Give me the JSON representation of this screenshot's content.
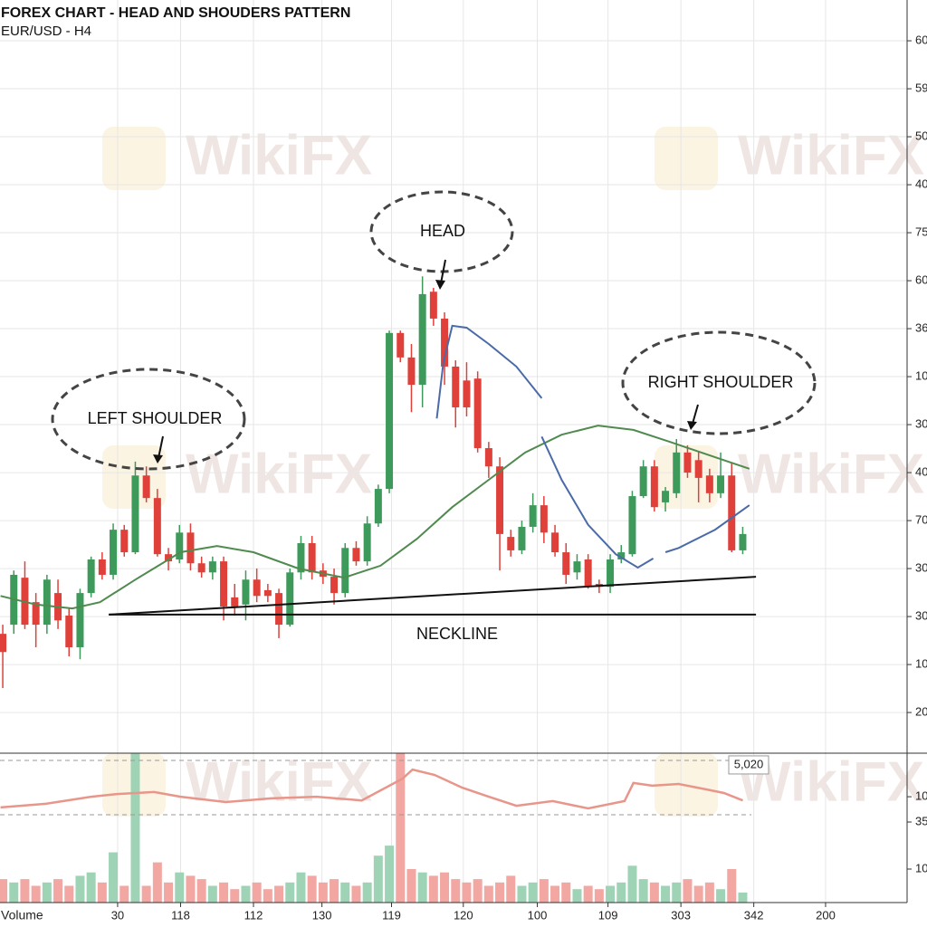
{
  "chart_data": [
    {
      "type": "candlestick",
      "title": "FOREX CHART - HEAD AND SHOUDERS PATTERN",
      "subtitle": "EUR/USD - H4",
      "watermark": "WikiFX",
      "up_color": "#3d9a5b",
      "down_color": "#e0403a",
      "x": [
        0,
        1,
        2,
        3,
        4,
        5,
        6,
        7,
        8,
        9,
        10,
        11,
        12,
        13,
        14,
        15,
        16,
        17,
        18,
        19,
        20,
        21,
        22,
        23,
        24,
        25,
        26,
        27,
        28,
        29,
        30,
        31,
        32,
        33,
        34,
        35,
        36,
        37,
        38,
        39,
        40,
        41,
        42,
        43,
        44,
        45,
        46,
        47,
        48,
        49,
        50,
        51,
        52,
        53,
        54,
        55,
        56,
        57,
        58,
        59,
        60,
        61,
        62,
        63,
        64,
        65,
        66,
        67
      ],
      "open": [
        1.64,
        1.83,
        2.81,
        2.3,
        1.83,
        2.49,
        2.02,
        1.36,
        2.49,
        3.19,
        2.87,
        3.81,
        3.34,
        4.94,
        4.47,
        3.3,
        3.19,
        3.75,
        3.11,
        2.92,
        3.15,
        2.4,
        2.25,
        2.77,
        2.55,
        2.49,
        1.83,
        2.92,
        3.53,
        2.96,
        2.83,
        2.49,
        3.43,
        3.15,
        3.94,
        4.66,
        7.91,
        7.4,
        6.83,
        8.77,
        8.21,
        7.21,
        6.92,
        6.96,
        5.51,
        5.13,
        3.66,
        3.38,
        3.87,
        4.32,
        3.75,
        3.34,
        2.92,
        3.19,
        2.68,
        2.62,
        3.19,
        3.3,
        4.51,
        5.13,
        4.38,
        4.57,
        5.42,
        5.26,
        4.94,
        4.57,
        4.94,
        3.38
      ],
      "close": [
        1.26,
        2.87,
        1.83,
        1.83,
        2.77,
        1.92,
        1.36,
        2.49,
        3.19,
        2.87,
        3.81,
        3.34,
        4.94,
        4.47,
        3.3,
        3.15,
        3.75,
        3.11,
        2.92,
        3.15,
        2.21,
        2.21,
        2.77,
        2.43,
        2.43,
        1.83,
        2.92,
        3.53,
        2.92,
        2.83,
        2.49,
        3.43,
        3.15,
        3.94,
        4.66,
        7.91,
        7.4,
        6.83,
        8.72,
        8.21,
        7.21,
        6.36,
        6.36,
        5.51,
        5.13,
        3.72,
        3.38,
        3.87,
        4.32,
        3.75,
        3.34,
        2.87,
        3.15,
        2.62,
        2.62,
        3.19,
        3.34,
        4.51,
        5.13,
        4.28,
        4.62,
        5.42,
        5.0,
        4.89,
        4.57,
        4.94,
        3.38,
        3.72
      ],
      "high": [
        1.83,
        2.96,
        3.15,
        2.49,
        2.87,
        2.77,
        2.17,
        2.58,
        3.25,
        3.34,
        3.94,
        3.91,
        5.23,
        5.13,
        4.66,
        3.43,
        3.91,
        3.94,
        3.25,
        3.25,
        3.25,
        2.68,
        2.96,
        3.0,
        2.68,
        2.58,
        3.0,
        3.68,
        3.68,
        3.11,
        3.0,
        3.53,
        3.57,
        4.09,
        4.75,
        7.96,
        7.96,
        7.68,
        9.09,
        8.85,
        8.34,
        7.34,
        7.3,
        7.11,
        5.64,
        5.32,
        3.81,
        4.0,
        4.57,
        4.51,
        3.91,
        3.53,
        3.3,
        3.3,
        2.77,
        3.3,
        3.49,
        4.62,
        5.26,
        5.26,
        4.7,
        5.7,
        5.57,
        5.45,
        5.08,
        5.42,
        5.19,
        3.87
      ],
      "low": [
        0.51,
        1.64,
        1.74,
        1.36,
        1.64,
        1.74,
        1.17,
        1.11,
        2.4,
        2.77,
        2.77,
        3.25,
        3.3,
        4.38,
        3.25,
        2.96,
        3.11,
        2.96,
        2.81,
        2.77,
        1.92,
        2.02,
        1.92,
        2.3,
        2.3,
        1.55,
        1.79,
        2.77,
        2.77,
        2.68,
        2.25,
        2.4,
        3.06,
        3.06,
        3.87,
        4.57,
        7.3,
        6.26,
        6.36,
        8.06,
        6.83,
        5.94,
        6.17,
        5.42,
        4.89,
        2.96,
        3.25,
        3.3,
        3.75,
        3.53,
        3.25,
        2.68,
        2.77,
        2.58,
        2.49,
        2.49,
        3.11,
        3.25,
        4.47,
        4.19,
        4.19,
        4.47,
        4.89,
        4.38,
        4.38,
        4.47,
        3.34,
        3.3
      ],
      "overlays": [
        {
          "color": "#4f8a4f",
          "x": [
            -0.2,
            3,
            6.3,
            8.8,
            12,
            16.1,
            19.4,
            22.7,
            26.8,
            30.9,
            34.2,
            37.5,
            40.7,
            44,
            47.3,
            50.6,
            53.9,
            57.1,
            60.4,
            64.5,
            67.6
          ],
          "values": [
            2.43,
            2.25,
            2.17,
            2.3,
            2.77,
            3.34,
            3.47,
            3.34,
            3.0,
            2.81,
            3.06,
            3.62,
            4.28,
            4.85,
            5.42,
            5.79,
            5.98,
            5.89,
            5.64,
            5.32,
            5.08
          ]
        },
        {
          "color": "#4a6aa8",
          "x": [
            39.3,
            39.9,
            40.7,
            42,
            44,
            46.5,
            48.8,
            48.8,
            48.8,
            50.6,
            53,
            55.5,
            57.5,
            58.9,
            59.5,
            60,
            61.2,
            64.5,
            67.6
          ],
          "values": [
            6.13,
            7.3,
            8.06,
            8.02,
            7.68,
            7.21,
            6.55,
            null,
            5.75,
            4.85,
            3.91,
            3.3,
            3.02,
            3.21,
            null,
            3.34,
            3.43,
            3.81,
            4.32
          ]
        }
      ],
      "trendlines": [
        {
          "color": "#111111",
          "x": [
            9.6,
            68.2
          ],
          "values": [
            2.04,
            2.04
          ]
        },
        {
          "color": "#111111",
          "x": [
            9.6,
            68.2
          ],
          "values": [
            2.04,
            2.83
          ]
        }
      ],
      "annotations": [
        "LEFT SHOULDER",
        "HEAD",
        "RIGHT SHOULDER",
        "NECKLINE"
      ],
      "xlim": [
        -0.25,
        81.88
      ],
      "xticks": [
        {
          "value": 10.4,
          "label": "30"
        },
        {
          "value": 16.1,
          "label": "118"
        },
        {
          "value": 22.7,
          "label": "112"
        },
        {
          "value": 28.9,
          "label": "130"
        },
        {
          "value": 35.2,
          "label": "119"
        },
        {
          "value": 41.7,
          "label": "120"
        },
        {
          "value": 48.4,
          "label": "100"
        },
        {
          "value": 54.8,
          "label": "109"
        },
        {
          "value": 61.4,
          "label": "303"
        },
        {
          "value": 68,
          "label": "342"
        },
        {
          "value": 74.5,
          "label": "200"
        }
      ],
      "ylim": [
        -0.81,
        14.85
      ],
      "yticks": [
        {
          "value": 0,
          "label": "20"
        },
        {
          "value": 1,
          "label": "10"
        },
        {
          "value": 2,
          "label": "30"
        },
        {
          "value": 3,
          "label": "30"
        },
        {
          "value": 4,
          "label": "70"
        },
        {
          "value": 5,
          "label": "40"
        },
        {
          "value": 6,
          "label": "30"
        },
        {
          "value": 7,
          "label": "10"
        },
        {
          "value": 8,
          "label": "36"
        },
        {
          "value": 9,
          "label": "60"
        },
        {
          "value": 10,
          "label": "75"
        },
        {
          "value": 11,
          "label": "40"
        },
        {
          "value": 12,
          "label": "50"
        },
        {
          "value": 13,
          "label": "59"
        },
        {
          "value": 14,
          "label": "60"
        }
      ],
      "grid": true
    },
    {
      "type": "bar",
      "label": "Volume",
      "up_color": "#9fd3b6",
      "down_color": "#f2a7a2",
      "values": [
        7,
        6,
        7,
        5,
        6,
        7,
        5,
        8,
        9,
        6,
        15,
        5,
        44.6,
        5,
        12,
        6,
        9,
        8,
        7,
        5,
        6,
        4,
        5,
        6,
        4,
        5,
        6,
        9,
        8,
        6,
        7,
        6,
        5,
        6,
        14,
        17,
        44.6,
        10,
        9,
        8,
        9,
        7,
        6,
        7,
        5,
        6,
        8,
        5,
        6,
        7,
        5,
        6,
        4,
        5,
        4,
        5,
        6,
        11,
        7,
        6,
        5,
        6,
        7,
        5,
        6,
        4,
        10,
        3
      ],
      "oscillator": {
        "color": "#e8968a",
        "x": [
          -0.2,
          3.9,
          8,
          10.4,
          13.7,
          16.1,
          20.2,
          24.3,
          28.4,
          32.5,
          36.2,
          37.1,
          39.1,
          41.6,
          44,
          46.5,
          49.8,
          53,
          56.3,
          57.1,
          58.8,
          61.2,
          63.7,
          65.3,
          67
        ],
        "values": [
          28.4,
          29.5,
          31.6,
          32.4,
          33,
          31.6,
          30,
          31.1,
          31.6,
          30.5,
          37,
          39.7,
          38.1,
          34.3,
          31.6,
          28.9,
          30.3,
          28.1,
          30.3,
          35.7,
          34.9,
          35.4,
          33.8,
          32.7,
          30.5
        ]
      },
      "last_value": {
        "value": 41.1,
        "label": "5,020"
      },
      "ylim": [
        0,
        44.6
      ],
      "yticks": [
        10,
        {
          "value": 24.05,
          "label": "35"
        },
        {
          "value": 31.6,
          "label": "10"
        }
      ]
    }
  ]
}
